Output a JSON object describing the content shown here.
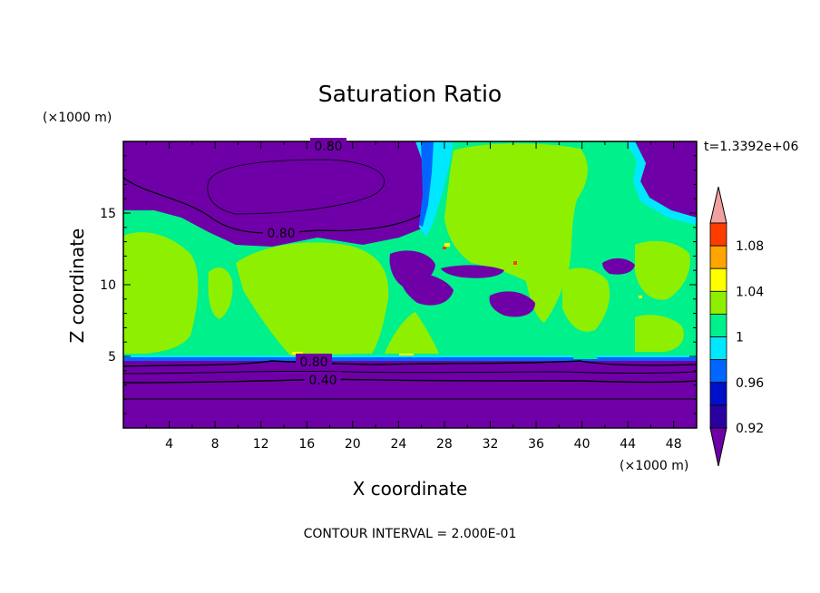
{
  "chart_data": {
    "type": "heatmap",
    "title": "Saturation Ratio",
    "xlabel": "X coordinate",
    "ylabel": "Z coordinate",
    "x_unit": "(×1000 m)",
    "y_unit": "(×1000 m)",
    "time_label": "t=1.3392e+06",
    "footer": "CONTOUR INTERVAL = 2.000E-01",
    "xlim": [
      0,
      50
    ],
    "ylim": [
      0,
      20
    ],
    "x_ticks": [
      4,
      8,
      12,
      16,
      20,
      24,
      28,
      32,
      36,
      40,
      44,
      48
    ],
    "y_ticks": [
      5,
      10,
      15
    ],
    "contour_labels": [
      "0.80",
      "0.80",
      "0.80",
      "0.40"
    ],
    "colorbar": {
      "levels": [
        {
          "min": null,
          "max": 0.92,
          "color": "#6f00a8"
        },
        {
          "min": 0.92,
          "max": 0.94,
          "color": "#2a00a0"
        },
        {
          "min": 0.94,
          "max": 0.96,
          "color": "#0010c8"
        },
        {
          "min": 0.96,
          "max": 0.98,
          "color": "#0066ff"
        },
        {
          "min": 0.98,
          "max": 1.0,
          "color": "#00e8ff"
        },
        {
          "min": 1.0,
          "max": 1.02,
          "color": "#00f08c"
        },
        {
          "min": 1.02,
          "max": 1.04,
          "color": "#8ef000"
        },
        {
          "min": 1.04,
          "max": 1.06,
          "color": "#ffff00"
        },
        {
          "min": 1.06,
          "max": 1.08,
          "color": "#ffa500"
        },
        {
          "min": 1.08,
          "max": 1.1,
          "color": "#ff3c00"
        },
        {
          "min": 1.1,
          "max": null,
          "color": "#f0a0a0"
        }
      ],
      "tick_labels": [
        "0.92",
        "0.96",
        "1",
        "1.04",
        "1.08"
      ]
    },
    "colors": {
      "dry": "#6f00a8",
      "near_saturation": "#00f08c",
      "supersaturated": "#8ef000",
      "transition": "#00e8ff",
      "high": "#ffff00"
    }
  }
}
